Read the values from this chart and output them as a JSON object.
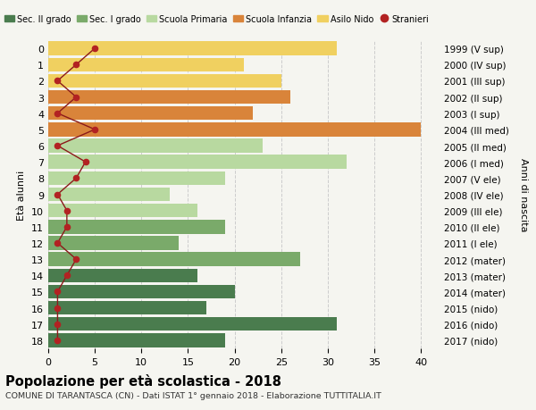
{
  "ages": [
    18,
    17,
    16,
    15,
    14,
    13,
    12,
    11,
    10,
    9,
    8,
    7,
    6,
    5,
    4,
    3,
    2,
    1,
    0
  ],
  "right_labels": [
    "1999 (V sup)",
    "2000 (IV sup)",
    "2001 (III sup)",
    "2002 (II sup)",
    "2003 (I sup)",
    "2004 (III med)",
    "2005 (II med)",
    "2006 (I med)",
    "2007 (V ele)",
    "2008 (IV ele)",
    "2009 (III ele)",
    "2010 (II ele)",
    "2011 (I ele)",
    "2012 (mater)",
    "2013 (mater)",
    "2014 (mater)",
    "2015 (nido)",
    "2016 (nido)",
    "2017 (nido)"
  ],
  "bar_values": [
    19,
    31,
    17,
    20,
    16,
    27,
    14,
    19,
    16,
    13,
    19,
    32,
    23,
    40,
    22,
    26,
    25,
    21,
    31
  ],
  "bar_colors": [
    "#4a7c4e",
    "#4a7c4e",
    "#4a7c4e",
    "#4a7c4e",
    "#4a7c4e",
    "#7aaa6a",
    "#7aaa6a",
    "#7aaa6a",
    "#b8d9a0",
    "#b8d9a0",
    "#b8d9a0",
    "#b8d9a0",
    "#b8d9a0",
    "#d9843a",
    "#d9843a",
    "#d9843a",
    "#f0d060",
    "#f0d060",
    "#f0d060"
  ],
  "stranieri_values": [
    1,
    1,
    1,
    1,
    2,
    3,
    1,
    2,
    2,
    1,
    3,
    4,
    1,
    5,
    1,
    3,
    1,
    3,
    5
  ],
  "legend_labels": [
    "Sec. II grado",
    "Sec. I grado",
    "Scuola Primaria",
    "Scuola Infanzia",
    "Asilo Nido",
    "Stranieri"
  ],
  "legend_colors": [
    "#4a7c4e",
    "#7aaa6a",
    "#b8d9a0",
    "#d9843a",
    "#f0d060",
    "#b22222"
  ],
  "title": "Popolazione per età scolastica - 2018",
  "subtitle": "COMUNE DI TARANTASCA (CN) - Dati ISTAT 1° gennaio 2018 - Elaborazione TUTTITALIA.IT",
  "ylabel_left": "Età alunni",
  "ylabel_right": "Anni di nascita",
  "bg_color": "#f5f5f0",
  "xlim": [
    0,
    42
  ],
  "xticks": [
    0,
    5,
    10,
    15,
    20,
    25,
    30,
    35,
    40
  ]
}
